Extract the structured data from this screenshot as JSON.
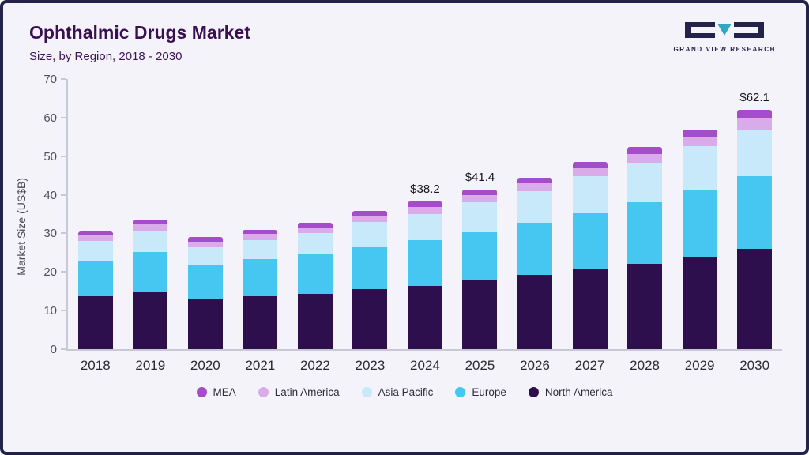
{
  "header": {
    "title": "Ophthalmic Drugs Market",
    "subtitle": "Size, by Region, 2018 - 2030",
    "brand": "GRAND VIEW RESEARCH"
  },
  "chart_data": {
    "type": "bar",
    "stacked": true,
    "title": "Ophthalmic Drugs Market Size, by Region, 2018 - 2030",
    "xlabel": "",
    "ylabel": "Market Size (US$B)",
    "ylim": [
      0,
      70
    ],
    "yticks": [
      0,
      10,
      20,
      30,
      40,
      50,
      60,
      70
    ],
    "grid": false,
    "legend_position": "bottom",
    "categories": [
      "2018",
      "2019",
      "2020",
      "2021",
      "2022",
      "2023",
      "2024",
      "2025",
      "2026",
      "2027",
      "2028",
      "2029",
      "2030"
    ],
    "series": [
      {
        "name": "North America",
        "color": "#2d0f4e",
        "values": [
          13.7,
          14.8,
          12.8,
          13.8,
          14.3,
          15.5,
          16.4,
          17.8,
          19.3,
          20.6,
          22.2,
          24.0,
          26.0
        ]
      },
      {
        "name": "Europe",
        "color": "#45c7f2",
        "values": [
          9.3,
          10.4,
          9.0,
          9.5,
          10.2,
          10.9,
          11.8,
          12.5,
          13.5,
          14.6,
          15.8,
          17.3,
          18.8
        ]
      },
      {
        "name": "Asia Pacific",
        "color": "#c8e9f9",
        "values": [
          5.0,
          5.6,
          4.7,
          5.0,
          5.5,
          6.6,
          6.8,
          7.7,
          8.2,
          9.6,
          10.3,
          11.3,
          12.2
        ]
      },
      {
        "name": "Latin America",
        "color": "#d9abe9",
        "values": [
          1.4,
          1.5,
          1.4,
          1.5,
          1.6,
          1.6,
          1.8,
          1.9,
          2.0,
          2.1,
          2.3,
          2.5,
          3.0
        ]
      },
      {
        "name": "MEA",
        "color": "#a54ccb",
        "values": [
          1.1,
          1.2,
          1.1,
          1.2,
          1.2,
          1.2,
          1.4,
          1.5,
          1.5,
          1.6,
          1.9,
          1.9,
          2.1
        ]
      }
    ],
    "totals": [
      30.5,
      33.5,
      29.0,
      31.0,
      32.8,
      35.8,
      38.2,
      41.4,
      44.5,
      48.5,
      52.5,
      57.0,
      62.1
    ],
    "annotations": [
      "",
      "",
      "",
      "",
      "",
      "",
      "$38.2",
      "$41.4",
      "",
      "",
      "",
      "",
      "$62.1"
    ],
    "legend": [
      {
        "label": "MEA",
        "color": "#a54ccb"
      },
      {
        "label": "Latin America",
        "color": "#d9abe9"
      },
      {
        "label": "Asia Pacific",
        "color": "#c8e9f9"
      },
      {
        "label": "Europe",
        "color": "#45c7f2"
      },
      {
        "label": "North America",
        "color": "#2d0f4e"
      }
    ]
  },
  "colors": {
    "background": "#f4f3fa",
    "border": "#23224a",
    "title_text": "#3a1053",
    "axis_line": "#c9c9d6",
    "brand_dark": "#23224a",
    "brand_teal": "#2fa8c0"
  }
}
